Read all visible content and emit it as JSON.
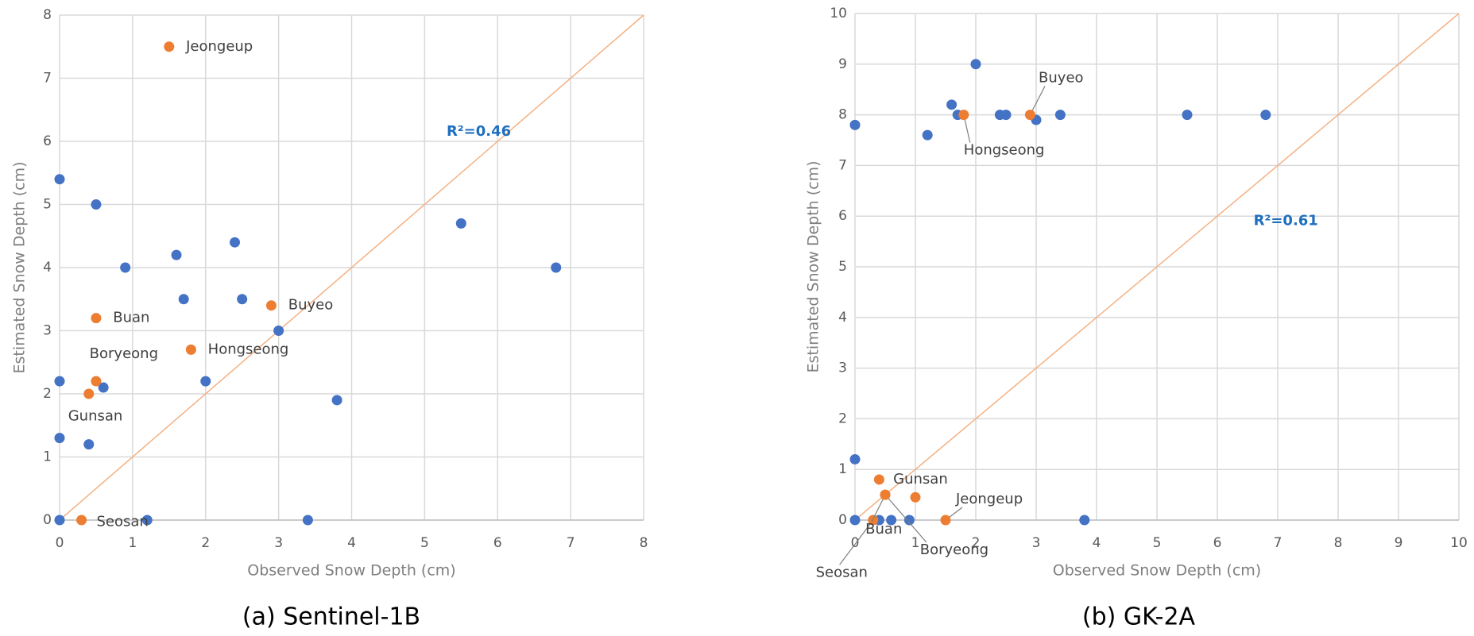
{
  "chart_data": [
    {
      "type": "scatter",
      "caption": "(a) Sentinel-1B",
      "xlabel": "Observed Snow Depth (cm)",
      "ylabel": "Estimated Snow Depth (cm)",
      "annotation": "R²=0.46",
      "grid": true,
      "xlim": [
        0,
        8
      ],
      "ylim": [
        0,
        8
      ],
      "xticks": [
        0,
        1,
        2,
        3,
        4,
        5,
        6,
        7,
        8
      ],
      "yticks": [
        0,
        1,
        2,
        3,
        4,
        5,
        6,
        7,
        8
      ],
      "series": [
        {
          "color": "#4472c4",
          "x": [
            0,
            0.5,
            0.9,
            1.6,
            2.4,
            1.7,
            2.5,
            3.0,
            2.0,
            0,
            0.6,
            0,
            0.4,
            0,
            1.2,
            3.4,
            3.8,
            5.5,
            6.8
          ],
          "y": [
            5.4,
            5.0,
            4.0,
            4.2,
            4.4,
            3.5,
            3.5,
            3.0,
            2.2,
            2.2,
            2.1,
            1.3,
            1.2,
            0,
            0,
            0,
            1.9,
            4.7,
            4.0
          ]
        },
        {
          "color": "#ed7d31",
          "x": [
            1.5,
            2.9,
            0.5,
            1.8,
            0.5,
            0.4,
            0.3
          ],
          "y": [
            7.5,
            3.4,
            3.2,
            2.7,
            2.2,
            2.0,
            0
          ],
          "labels": [
            "Jeongeup",
            "Buyeo",
            "Buan",
            "Hongseong",
            "Boryeong",
            "Gunsan",
            "Seosan"
          ]
        }
      ]
    },
    {
      "type": "scatter",
      "caption": "(b) GK-2A",
      "xlabel": "Observed Snow Depth (cm)",
      "ylabel": "Estimated Snow Depth (cm)",
      "annotation": "R²=0.61",
      "grid": true,
      "xlim": [
        0,
        10
      ],
      "ylim": [
        0,
        10
      ],
      "xticks": [
        0,
        1,
        2,
        3,
        4,
        5,
        6,
        7,
        8,
        9,
        10
      ],
      "yticks": [
        0,
        1,
        2,
        3,
        4,
        5,
        6,
        7,
        8,
        9,
        10
      ],
      "series": [
        {
          "color": "#4472c4",
          "x": [
            0,
            1.2,
            1.6,
            1.7,
            2.0,
            2.4,
            2.5,
            3.0,
            3.4,
            5.5,
            6.8,
            0,
            0,
            0.4,
            0.6,
            0.9,
            3.8
          ],
          "y": [
            7.8,
            7.6,
            8.2,
            8.0,
            9.0,
            8.0,
            8.0,
            7.9,
            8.0,
            8.0,
            8.0,
            1.2,
            0,
            0,
            0,
            0,
            0
          ]
        },
        {
          "color": "#ed7d31",
          "x": [
            2.9,
            1.8,
            0.4,
            1.0,
            0.3,
            0.5,
            0.5,
            1.5
          ],
          "y": [
            8.0,
            8.0,
            0.8,
            0.45,
            0,
            0.5,
            0.5,
            0
          ],
          "labels": [
            "Buyeo",
            "Hongseong",
            "Gunsan",
            null,
            "Seosan",
            "Buan",
            "Boryeong",
            "Jeongeup"
          ]
        }
      ]
    }
  ]
}
